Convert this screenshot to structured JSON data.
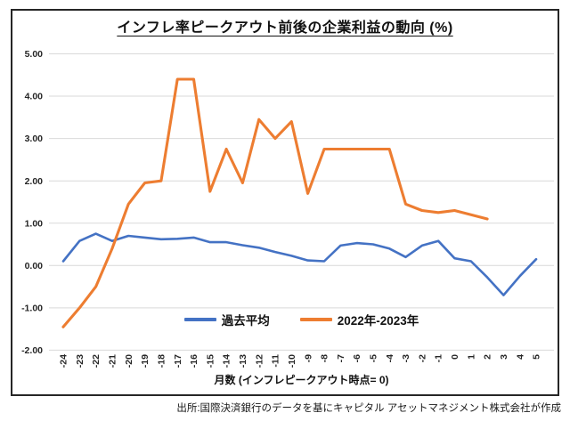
{
  "chart": {
    "title": "インフレ率ピークアウト前後の企業利益の動向 (%)",
    "source": "出所:国際決済銀行のデータを基にキャピタル アセットマネジメント株式会社が作成"
  },
  "chart_data": {
    "type": "line",
    "title": "インフレ率ピークアウト前後の企業利益の動向 (%)",
    "xlabel": "月数 (インフレピークアウト時点= 0)",
    "ylabel": "",
    "ylim": [
      -2,
      5
    ],
    "y_ticks": [
      "5.00",
      "4.00",
      "3.00",
      "2.00",
      "1.00",
      "0.00",
      "-1.00",
      "-2.00"
    ],
    "x": [
      -24,
      -23,
      -22,
      -21,
      -20,
      -19,
      -18,
      -17,
      -16,
      -15,
      -14,
      -13,
      -12,
      -11,
      -10,
      -9,
      -8,
      -7,
      -6,
      -5,
      -4,
      -3,
      -2,
      -1,
      0,
      1,
      2,
      3,
      4,
      5
    ],
    "grid": true,
    "legend_position": "bottom-inside",
    "series": [
      {
        "name": "過去平均",
        "color": "#4472C4",
        "x_start": -24,
        "values": [
          0.1,
          0.58,
          0.75,
          0.58,
          0.7,
          0.66,
          0.62,
          0.63,
          0.66,
          0.55,
          0.55,
          0.48,
          0.42,
          0.32,
          0.23,
          0.12,
          0.1,
          0.47,
          0.53,
          0.5,
          0.4,
          0.2,
          0.47,
          0.58,
          0.17,
          0.1,
          -0.28,
          -0.7,
          -0.25,
          0.15
        ]
      },
      {
        "name": "2022年-2023年",
        "color": "#ED7D31",
        "x_start": -24,
        "values": [
          -1.45,
          -1.0,
          -0.5,
          0.4,
          1.45,
          1.95,
          2.0,
          4.4,
          4.4,
          1.75,
          2.75,
          1.95,
          3.45,
          3.0,
          3.4,
          1.7,
          2.75,
          2.75,
          2.75,
          2.75,
          2.75,
          1.45,
          1.3,
          1.25,
          1.3,
          1.2,
          1.1
        ]
      }
    ]
  }
}
